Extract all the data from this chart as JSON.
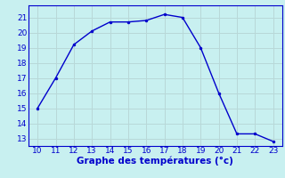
{
  "x": [
    10,
    11,
    12,
    13,
    14,
    15,
    16,
    17,
    18,
    19,
    20,
    21,
    22,
    23
  ],
  "y": [
    15.0,
    17.0,
    19.2,
    20.1,
    20.7,
    20.7,
    20.8,
    21.2,
    21.0,
    19.0,
    16.0,
    13.3,
    13.3,
    12.8
  ],
  "xlim": [
    9.5,
    23.5
  ],
  "ylim": [
    12.5,
    21.8
  ],
  "xticks": [
    10,
    11,
    12,
    13,
    14,
    15,
    16,
    17,
    18,
    19,
    20,
    21,
    22,
    23
  ],
  "yticks": [
    13,
    14,
    15,
    16,
    17,
    18,
    19,
    20,
    21
  ],
  "xlabel": "Graphe des températures (°c)",
  "line_color": "#0000cc",
  "marker_color": "#0000cc",
  "bg_color": "#c8f0f0",
  "grid_color": "#b8d8d8",
  "axis_label_color": "#0000cc",
  "tick_color": "#0000cc",
  "xlabel_fontsize": 7.5,
  "tick_fontsize": 6.5
}
